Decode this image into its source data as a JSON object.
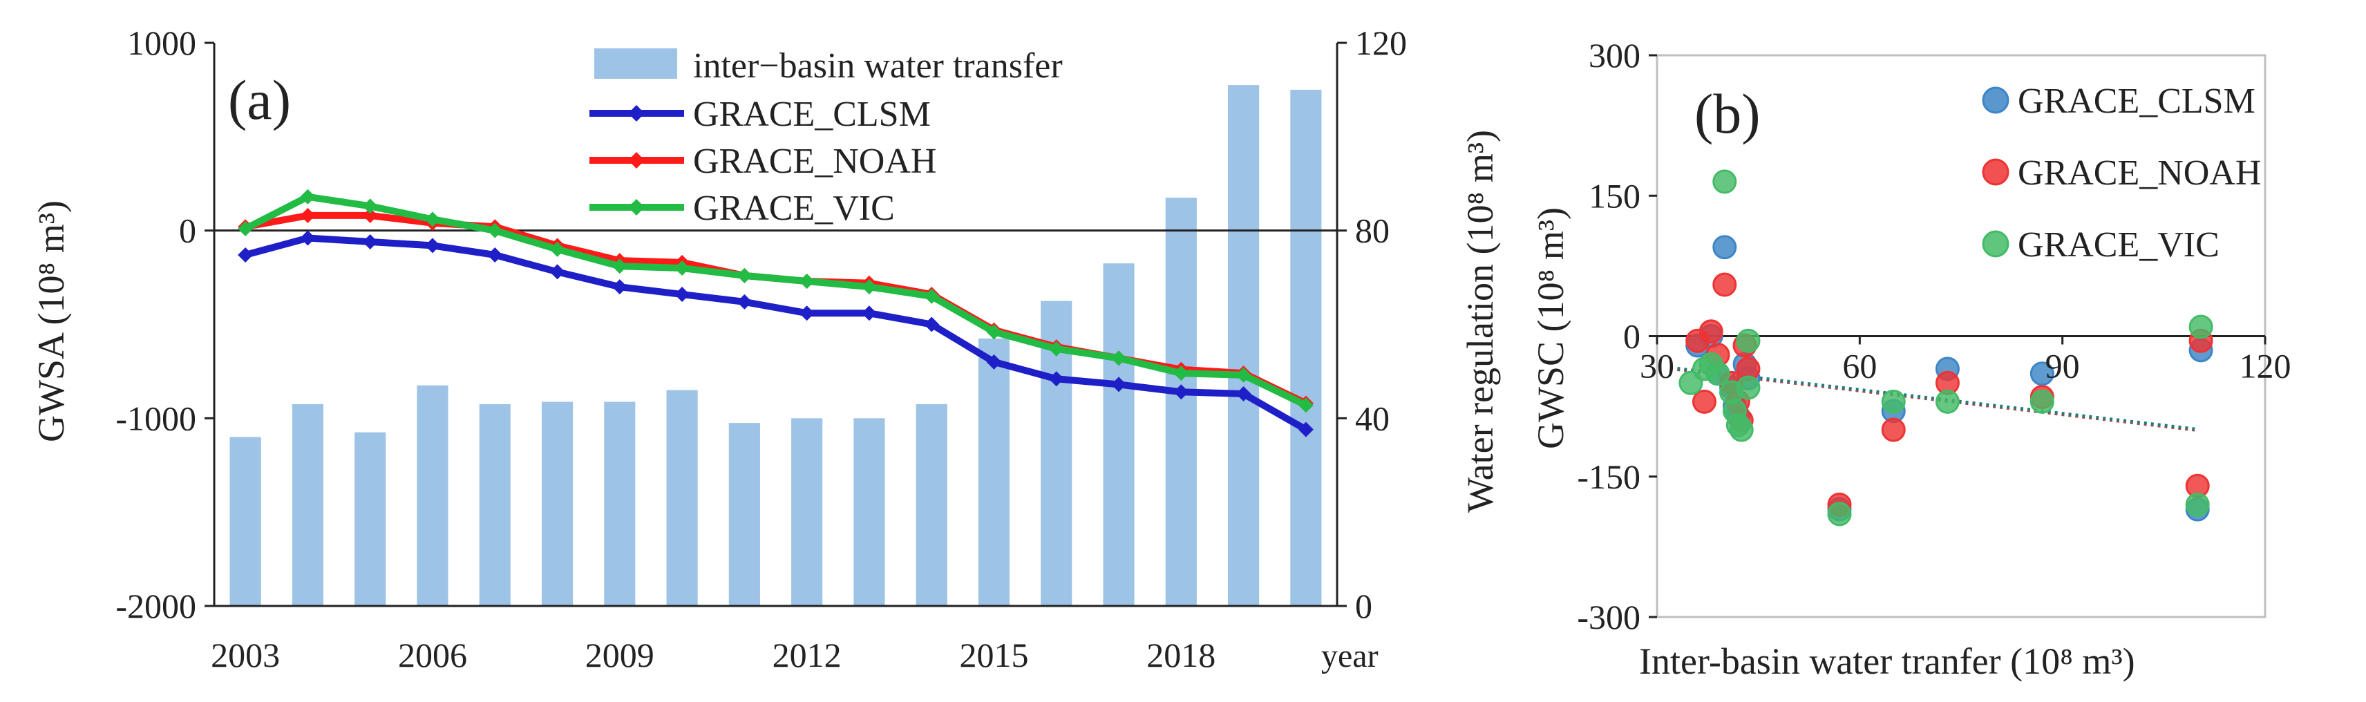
{
  "chart_data": [
    {
      "type": "bar+line",
      "panel_label": "(a)",
      "x": [
        2003,
        2004,
        2005,
        2006,
        2007,
        2008,
        2009,
        2010,
        2011,
        2012,
        2013,
        2014,
        2015,
        2016,
        2017,
        2018,
        2019,
        2020
      ],
      "x_ticks": [
        "2003",
        "2006",
        "2009",
        "2012",
        "2015",
        "2018"
      ],
      "xlabel": "year",
      "ylabel_left": "GWSA (10⁸ m³)",
      "ylabel_right": "Water regulation (10⁸ m³)",
      "ylim_left": [
        -2000,
        1000
      ],
      "yticks_left": [
        "1000",
        "0",
        "-1000",
        "-2000"
      ],
      "ylim_right": [
        0,
        120
      ],
      "yticks_right": [
        "120",
        "80",
        "40",
        "0"
      ],
      "bars": {
        "name": "inter−basin water transfer",
        "axis": "right",
        "color": "#9dc3e6",
        "values": [
          36,
          43,
          37,
          47,
          43,
          43.5,
          43.5,
          46,
          39,
          40,
          40,
          43,
          57,
          65,
          73,
          87,
          111,
          110
        ]
      },
      "series": [
        {
          "name": "GRACE_CLSM",
          "axis": "left",
          "color": "#1f1fc8",
          "values": [
            -130,
            -40,
            -60,
            -80,
            -130,
            -220,
            -300,
            -340,
            -380,
            -440,
            -440,
            -500,
            -700,
            -790,
            -820,
            -860,
            -870,
            -1060
          ]
        },
        {
          "name": "GRACE_NOAH",
          "axis": "left",
          "color": "#ff1a1a",
          "values": [
            20,
            80,
            80,
            40,
            20,
            -80,
            -160,
            -170,
            -240,
            -270,
            -280,
            -340,
            -530,
            -620,
            -680,
            -740,
            -760,
            -920
          ]
        },
        {
          "name": "GRACE_VIC",
          "axis": "left",
          "color": "#22bb44",
          "values": [
            10,
            180,
            130,
            60,
            0,
            -100,
            -190,
            -200,
            -240,
            -270,
            -300,
            -350,
            -540,
            -630,
            -680,
            -760,
            -770,
            -930
          ]
        }
      ]
    },
    {
      "type": "scatter",
      "panel_label": "(b)",
      "xlabel": "Inter-basin water tranfer (10⁸ m³)",
      "ylabel": "GWSC (10⁸ m³)",
      "xlim": [
        30,
        120
      ],
      "x_ticks": [
        "30",
        "60",
        "90",
        "120"
      ],
      "ylim": [
        -300,
        300
      ],
      "y_ticks": [
        "300",
        "150",
        "0",
        "-150",
        "-300"
      ],
      "series": [
        {
          "name": "GRACE_CLSM",
          "color": "#3d85c6",
          "points": [
            [
              36,
              -10
            ],
            [
              38,
              0
            ],
            [
              39,
              -40
            ],
            [
              40,
              95
            ],
            [
              41,
              -55
            ],
            [
              41.5,
              -75
            ],
            [
              42,
              -85
            ],
            [
              43,
              -30
            ],
            [
              43.5,
              -45
            ],
            [
              57,
              -185
            ],
            [
              65,
              -80
            ],
            [
              73,
              -35
            ],
            [
              87,
              -40
            ],
            [
              110,
              -185
            ],
            [
              110.5,
              -15
            ]
          ]
        },
        {
          "name": "GRACE_NOAH",
          "color": "#ee3333",
          "points": [
            [
              36,
              -5
            ],
            [
              37,
              -70
            ],
            [
              38,
              5
            ],
            [
              39,
              -20
            ],
            [
              40,
              55
            ],
            [
              41,
              -50
            ],
            [
              42,
              -70
            ],
            [
              42.5,
              -90
            ],
            [
              43,
              -10
            ],
            [
              43.5,
              -35
            ],
            [
              57,
              -180
            ],
            [
              65,
              -100
            ],
            [
              73,
              -50
            ],
            [
              87,
              -65
            ],
            [
              110,
              -160
            ],
            [
              110.5,
              -5
            ]
          ]
        },
        {
          "name": "GRACE_VIC",
          "color": "#44bb66",
          "points": [
            [
              35,
              -50
            ],
            [
              37,
              -35
            ],
            [
              38,
              -30
            ],
            [
              39,
              -40
            ],
            [
              40,
              165
            ],
            [
              41,
              -60
            ],
            [
              41.5,
              -80
            ],
            [
              42,
              -95
            ],
            [
              42.5,
              -100
            ],
            [
              43.5,
              -5
            ],
            [
              43.5,
              -55
            ],
            [
              57,
              -190
            ],
            [
              65,
              -70
            ],
            [
              73,
              -70
            ],
            [
              87,
              -70
            ],
            [
              110,
              -180
            ],
            [
              110.5,
              10
            ]
          ]
        }
      ],
      "trendline": {
        "from": [
          33,
          -35
        ],
        "to": [
          110,
          -100
        ],
        "style": "dotted"
      }
    }
  ]
}
